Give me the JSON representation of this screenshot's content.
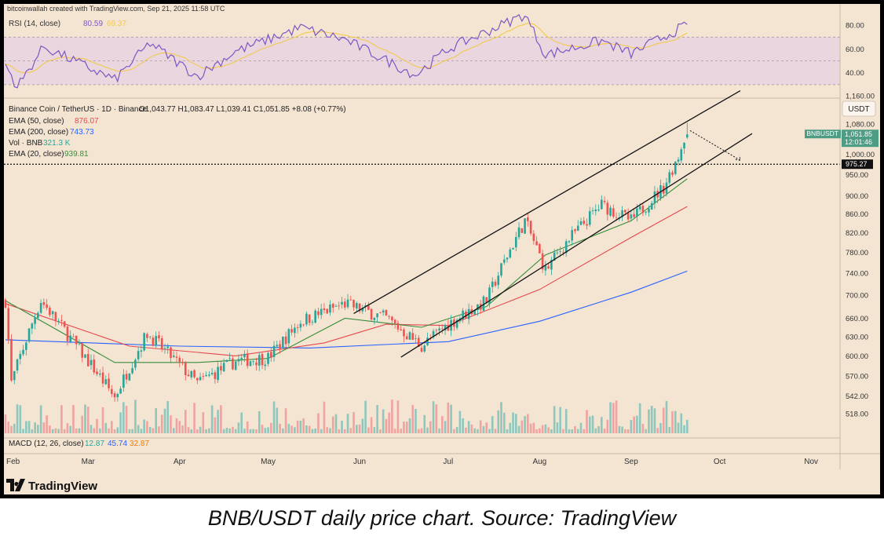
{
  "header": {
    "credit": "bitcoinwallah created with TradingView.com, Sep 21, 2025 11:58 UTC"
  },
  "rsi_pane": {
    "label": "RSI (14, close)",
    "value1": "80.59",
    "value2": "69.37",
    "ticks": [
      "80.00",
      "60.00",
      "40.00"
    ],
    "colors": {
      "line": "#7e57c2",
      "ma": "#f2c94c",
      "band": "#e9d6df"
    }
  },
  "legend": {
    "symbol": "Binance Coin / TetherUS · 1D · Binance",
    "ohlc": "O1,043.77  H1,083.47  L1,039.41  C1,051.85  +8.08 (+0.77%)",
    "ema50_label": "EMA (50, close)",
    "ema50_value": "876.07",
    "ema200_label": "EMA (200, close)",
    "ema200_value": "743.73",
    "vol_label": "Vol · BNB",
    "vol_value": "321.3 K",
    "ema20_label": "EMA (20, close)",
    "ema20_value": "939.81",
    "colors": {
      "ema50": "#e5484d",
      "ema200": "#2962ff",
      "vol": "#26a69a",
      "ema20": "#388e3c"
    }
  },
  "axis": {
    "currency": "USDT",
    "price_ticks": [
      "1,160.00",
      "1,080.00",
      "1,000.00",
      "950.00",
      "900.00",
      "860.00",
      "820.00",
      "780.00",
      "740.00",
      "700.00",
      "660.00",
      "630.00",
      "600.00",
      "570.00",
      "542.00",
      "518.00"
    ],
    "symbol_tag": "BNBUSDT",
    "last_price": "1,051.85",
    "countdown": "12:01:46",
    "level_price": "975.27",
    "months": [
      "Feb",
      "Mar",
      "Apr",
      "May",
      "Jun",
      "Jul",
      "Aug",
      "Sep",
      "Oct",
      "Nov"
    ]
  },
  "macd": {
    "label": "MACD (12, 26, close)",
    "v1": "12.87",
    "v2": "45.74",
    "v3": "32.87",
    "colors": {
      "v1": "#26a69a",
      "v2": "#2962ff",
      "v3": "#f57c00"
    }
  },
  "brand": {
    "name": "TradingView"
  },
  "caption": "BNB/USDT daily price chart. Source: TradingView",
  "colors": {
    "background": "#f4e5d3",
    "up": "#26a69a",
    "down": "#ef5350",
    "vol_up": "#8fc7bd",
    "vol_down": "#f0a3a0"
  },
  "chart_data": {
    "type": "candlestick",
    "series_name": "BNBUSDT",
    "interval": "1D",
    "price_range": [
      500,
      1200
    ],
    "x_start": "2025-02-01",
    "x_end": "2025-11-10",
    "key_points": [
      {
        "date": "2025-02-01",
        "close": 690
      },
      {
        "date": "2025-02-03",
        "close": 560
      },
      {
        "date": "2025-02-13",
        "close": 690
      },
      {
        "date": "2025-02-25",
        "close": 615
      },
      {
        "date": "2025-03-10",
        "close": 540
      },
      {
        "date": "2025-03-21",
        "close": 635
      },
      {
        "date": "2025-04-07",
        "close": 560
      },
      {
        "date": "2025-04-20",
        "close": 592
      },
      {
        "date": "2025-05-01",
        "close": 597
      },
      {
        "date": "2025-05-12",
        "close": 655
      },
      {
        "date": "2025-05-27",
        "close": 685
      },
      {
        "date": "2025-06-10",
        "close": 660
      },
      {
        "date": "2025-06-22",
        "close": 615
      },
      {
        "date": "2025-07-01",
        "close": 650
      },
      {
        "date": "2025-07-14",
        "close": 690
      },
      {
        "date": "2025-07-27",
        "close": 845
      },
      {
        "date": "2025-08-03",
        "close": 745
      },
      {
        "date": "2025-08-10",
        "close": 800
      },
      {
        "date": "2025-08-22",
        "close": 880
      },
      {
        "date": "2025-09-01",
        "close": 845
      },
      {
        "date": "2025-09-12",
        "close": 920
      },
      {
        "date": "2025-09-17",
        "close": 995
      },
      {
        "date": "2025-09-19",
        "close": 1043.77
      },
      {
        "date": "2025-09-20",
        "close": 1051.85
      }
    ],
    "last_candle": {
      "date": "2025-09-20",
      "open": 1043.77,
      "high": 1083.47,
      "low": 1039.41,
      "close": 1051.85
    },
    "ema20_points": [
      {
        "date": "2025-02-01",
        "value": 690
      },
      {
        "date": "2025-03-10",
        "value": 590
      },
      {
        "date": "2025-04-07",
        "value": 590
      },
      {
        "date": "2025-05-01",
        "value": 596
      },
      {
        "date": "2025-05-27",
        "value": 660
      },
      {
        "date": "2025-06-22",
        "value": 645
      },
      {
        "date": "2025-07-14",
        "value": 680
      },
      {
        "date": "2025-08-03",
        "value": 775
      },
      {
        "date": "2025-09-01",
        "value": 845
      },
      {
        "date": "2025-09-20",
        "value": 939.81
      }
    ],
    "ema50_points": [
      {
        "date": "2025-02-01",
        "value": 685
      },
      {
        "date": "2025-03-15",
        "value": 615
      },
      {
        "date": "2025-04-20",
        "value": 600
      },
      {
        "date": "2025-05-20",
        "value": 620
      },
      {
        "date": "2025-06-10",
        "value": 650
      },
      {
        "date": "2025-07-01",
        "value": 648
      },
      {
        "date": "2025-08-01",
        "value": 710
      },
      {
        "date": "2025-09-01",
        "value": 810
      },
      {
        "date": "2025-09-20",
        "value": 876.07
      }
    ],
    "ema200_points": [
      {
        "date": "2025-02-01",
        "value": 625
      },
      {
        "date": "2025-04-01",
        "value": 615
      },
      {
        "date": "2025-05-15",
        "value": 612
      },
      {
        "date": "2025-07-01",
        "value": 622
      },
      {
        "date": "2025-08-01",
        "value": 655
      },
      {
        "date": "2025-09-01",
        "value": 705
      },
      {
        "date": "2025-09-20",
        "value": 743.73
      }
    ],
    "trendlines": [
      {
        "name": "channel-upper",
        "from": {
          "date": "2025-05-30",
          "price": 668
        },
        "to": {
          "date": "2025-10-08",
          "price": 1175
        }
      },
      {
        "name": "channel-lower",
        "from": {
          "date": "2025-06-15",
          "price": 598
        },
        "to": {
          "date": "2025-10-12",
          "price": 1054
        }
      },
      {
        "name": "projection",
        "from": {
          "date": "2025-09-21",
          "price": 1062
        },
        "to": {
          "date": "2025-10-08",
          "price": 985
        }
      }
    ],
    "horizontal_level": 975.27,
    "rsi_points": [
      {
        "date": "2025-02-01",
        "value": 47
      },
      {
        "date": "2025-02-05",
        "value": 28
      },
      {
        "date": "2025-02-14",
        "value": 62
      },
      {
        "date": "2025-03-10",
        "value": 34
      },
      {
        "date": "2025-03-22",
        "value": 65
      },
      {
        "date": "2025-04-07",
        "value": 37
      },
      {
        "date": "2025-04-20",
        "value": 58
      },
      {
        "date": "2025-05-12",
        "value": 78
      },
      {
        "date": "2025-05-27",
        "value": 68
      },
      {
        "date": "2025-06-20",
        "value": 38
      },
      {
        "date": "2025-07-01",
        "value": 60
      },
      {
        "date": "2025-07-27",
        "value": 89
      },
      {
        "date": "2025-08-03",
        "value": 55
      },
      {
        "date": "2025-08-22",
        "value": 67
      },
      {
        "date": "2025-09-01",
        "value": 56
      },
      {
        "date": "2025-09-20",
        "value": 80.59
      }
    ],
    "rsi_range": [
      20,
      90
    ],
    "rsi_band": [
      30,
      70
    ]
  }
}
